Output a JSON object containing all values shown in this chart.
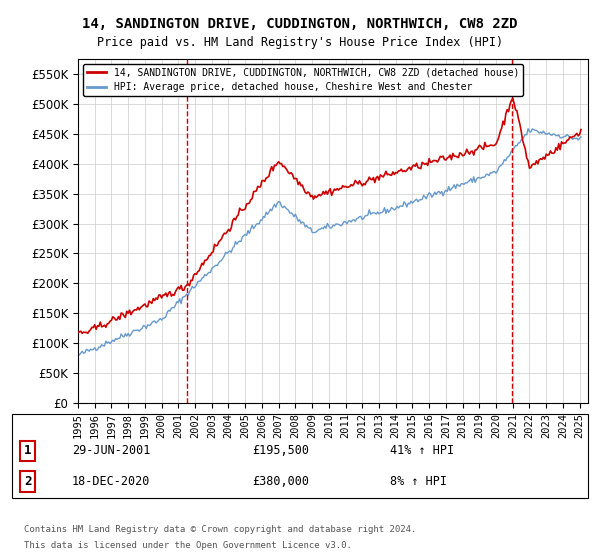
{
  "title_line1": "14, SANDINGTON DRIVE, CUDDINGTON, NORTHWICH, CW8 2ZD",
  "title_line2": "Price paid vs. HM Land Registry's House Price Index (HPI)",
  "ylim": [
    0,
    575000
  ],
  "yticks": [
    0,
    50000,
    100000,
    150000,
    200000,
    250000,
    300000,
    350000,
    400000,
    450000,
    500000,
    550000
  ],
  "xlim_start": 1995.0,
  "xlim_end": 2025.5,
  "line_color_property": "#cc0000",
  "line_color_hpi": "#6699cc",
  "marker1_x": 2001.49,
  "marker1_y": 195500,
  "marker2_x": 2020.96,
  "marker2_y": 380000,
  "annotation1_label": "1",
  "annotation2_label": "2",
  "legend_property": "14, SANDINGTON DRIVE, CUDDINGTON, NORTHWICH, CW8 2ZD (detached house)",
  "legend_hpi": "HPI: Average price, detached house, Cheshire West and Chester",
  "table_row1": "1     29-JUN-2001     £195,500     41% ↑ HPI",
  "table_row2": "2     18-DEC-2020     £380,000       8% ↑ HPI",
  "footnote1": "Contains HM Land Registry data © Crown copyright and database right 2024.",
  "footnote2": "This data is licensed under the Open Government Licence v3.0.",
  "background_color": "#ffffff",
  "grid_color": "#cccccc"
}
